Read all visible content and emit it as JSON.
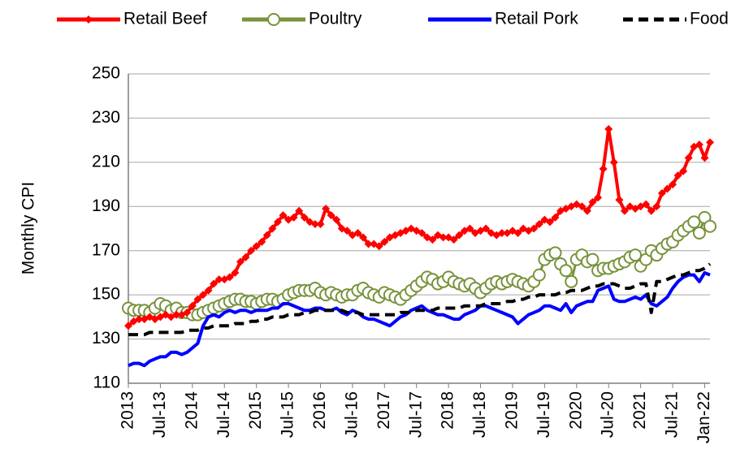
{
  "chart_data": {
    "type": "line",
    "y_label": "Monthly CPI",
    "categories": [
      "2013",
      null,
      null,
      null,
      null,
      null,
      "Jul-13",
      null,
      null,
      null,
      null,
      null,
      "2014",
      null,
      null,
      null,
      null,
      null,
      "Jul-14",
      null,
      null,
      null,
      null,
      null,
      "2015",
      null,
      null,
      null,
      null,
      null,
      "Jul-15",
      null,
      null,
      null,
      null,
      null,
      "2016",
      null,
      null,
      null,
      null,
      null,
      "Jul-16",
      null,
      null,
      null,
      null,
      null,
      "2017",
      null,
      null,
      null,
      null,
      null,
      "Jul-17",
      null,
      null,
      null,
      null,
      null,
      "2018",
      null,
      null,
      null,
      null,
      null,
      "Jul-18",
      null,
      null,
      null,
      null,
      null,
      "2019",
      null,
      null,
      null,
      null,
      null,
      "Jul-19",
      null,
      null,
      null,
      null,
      null,
      "2020",
      null,
      null,
      null,
      null,
      null,
      "Jul-20",
      null,
      null,
      null,
      null,
      null,
      "2021",
      null,
      null,
      null,
      null,
      null,
      "Jul-21",
      null,
      null,
      null,
      null,
      null,
      "Jan-22",
      null
    ],
    "series": [
      {
        "name": "Retail Beef",
        "color": "#ff0000",
        "marker": "diamond",
        "dash": false,
        "values": [
          136,
          138,
          139,
          139,
          140,
          139,
          140,
          141,
          140,
          141,
          141,
          142,
          145,
          148,
          150,
          152,
          155,
          157,
          157,
          158,
          160,
          165,
          167,
          170,
          172,
          174,
          177,
          180,
          183,
          186,
          184,
          185,
          188,
          185,
          183,
          182,
          182,
          189,
          186,
          184,
          180,
          179,
          177,
          178,
          176,
          173,
          173,
          172,
          174,
          176,
          177,
          178,
          179,
          180,
          179,
          178,
          176,
          175,
          177,
          176,
          176,
          175,
          177,
          179,
          180,
          178,
          179,
          180,
          178,
          177,
          178,
          178,
          179,
          178,
          180,
          179,
          180,
          182,
          184,
          183,
          185,
          188,
          189,
          190,
          191,
          190,
          188,
          192,
          194,
          207,
          225,
          210,
          193,
          188,
          190,
          189,
          190,
          191,
          188,
          190,
          196,
          198,
          200,
          204,
          206,
          212,
          217,
          218,
          212,
          219
        ]
      },
      {
        "name": "Poultry",
        "color": "#77933c",
        "marker": "circle",
        "dash": false,
        "values": [
          144,
          143,
          143,
          143,
          142,
          144,
          146,
          145,
          143,
          144,
          142,
          142,
          141,
          141,
          142,
          143,
          144,
          145,
          146,
          147,
          148,
          148,
          147,
          147,
          146,
          147,
          148,
          148,
          147,
          148,
          150,
          151,
          152,
          152,
          152,
          153,
          151,
          150,
          151,
          150,
          149,
          150,
          150,
          152,
          153,
          151,
          150,
          149,
          151,
          150,
          149,
          148,
          150,
          152,
          154,
          156,
          158,
          157,
          155,
          156,
          158,
          156,
          155,
          154,
          155,
          153,
          151,
          153,
          155,
          156,
          155,
          156,
          157,
          156,
          155,
          154,
          156,
          159,
          166,
          168,
          169,
          164,
          161,
          156,
          166,
          168,
          165,
          166,
          161,
          162,
          162,
          163,
          164,
          165,
          167,
          168,
          163,
          166,
          170,
          168,
          171,
          173,
          174,
          177,
          179,
          181,
          183,
          178,
          185,
          181
        ]
      },
      {
        "name": "Retail Pork",
        "color": "#0000ff",
        "marker": "none",
        "dash": false,
        "values": [
          118,
          119,
          119,
          118,
          120,
          121,
          122,
          122,
          124,
          124,
          123,
          124,
          126,
          128,
          136,
          140,
          141,
          140,
          142,
          143,
          142,
          143,
          143,
          142,
          143,
          143,
          143,
          144,
          144,
          146,
          146,
          145,
          144,
          143,
          143,
          144,
          144,
          143,
          143,
          144,
          142,
          141,
          143,
          142,
          140,
          139,
          139,
          138,
          137,
          136,
          138,
          140,
          141,
          143,
          144,
          145,
          143,
          142,
          141,
          141,
          140,
          139,
          139,
          141,
          142,
          143,
          145,
          145,
          144,
          143,
          142,
          141,
          140,
          137,
          139,
          141,
          142,
          143,
          145,
          145,
          144,
          143,
          146,
          142,
          145,
          146,
          147,
          147,
          152,
          153,
          154,
          148,
          147,
          147,
          148,
          149,
          148,
          150,
          146,
          145,
          147,
          149,
          153,
          156,
          158,
          159,
          159,
          156,
          160,
          159
        ]
      },
      {
        "name": "Food",
        "color": "#000000",
        "marker": "none",
        "dash": true,
        "values": [
          132,
          132,
          132,
          132,
          133,
          133,
          133,
          133,
          133,
          133,
          133,
          134,
          134,
          134,
          135,
          135,
          136,
          136,
          136,
          136,
          137,
          137,
          137,
          138,
          138,
          139,
          139,
          140,
          140,
          140,
          141,
          141,
          141,
          142,
          142,
          143,
          143,
          143,
          143,
          143,
          143,
          142,
          142,
          142,
          141,
          141,
          141,
          141,
          141,
          141,
          141,
          142,
          142,
          142,
          143,
          143,
          143,
          143,
          144,
          144,
          144,
          144,
          144,
          145,
          145,
          145,
          145,
          146,
          146,
          146,
          146,
          147,
          147,
          148,
          148,
          149,
          149,
          150,
          150,
          150,
          150,
          151,
          151,
          152,
          152,
          152,
          153,
          154,
          154,
          155,
          155,
          155,
          154,
          153,
          153,
          154,
          155,
          155,
          142,
          156,
          156,
          157,
          158,
          159,
          159,
          160,
          161,
          161,
          162,
          164
        ]
      }
    ],
    "ylim": [
      110,
      250
    ],
    "yticks": [
      110,
      130,
      150,
      170,
      190,
      210,
      230,
      250
    ],
    "grid": true,
    "legend": "top"
  }
}
